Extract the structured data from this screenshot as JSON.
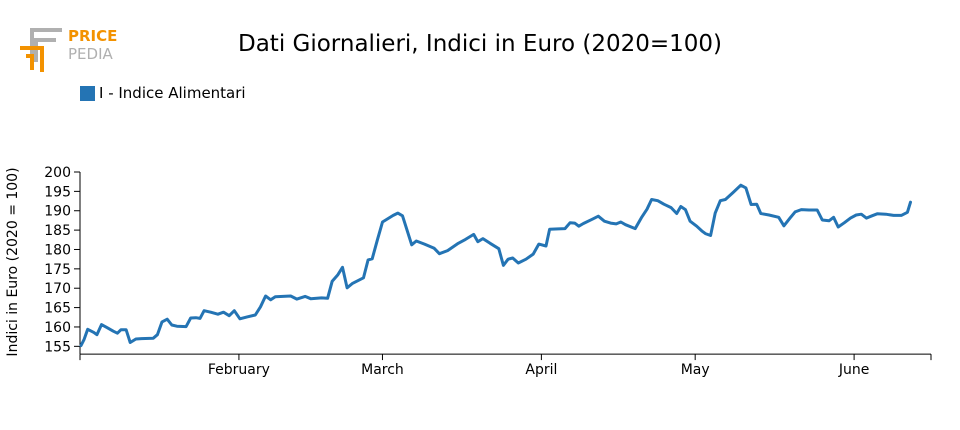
{
  "logo": {
    "line1": "PRICE",
    "line2": "PEDIA",
    "accent_color": "#f39200",
    "gray_color": "#b0b0b0"
  },
  "chart_data": {
    "type": "line",
    "title": "Dati Giornalieri, Indici in Euro (2020=100)",
    "ylabel": "Indici in Euro (2020 = 100)",
    "xlabel": "",
    "ylim": [
      153,
      200
    ],
    "yticks": [
      155,
      160,
      165,
      170,
      175,
      180,
      185,
      190,
      195,
      200
    ],
    "month_ticks": [
      {
        "label": "February",
        "day": 31
      },
      {
        "label": "March",
        "day": 59
      },
      {
        "label": "April",
        "day": 90
      },
      {
        "label": "May",
        "day": 120
      },
      {
        "label": "June",
        "day": 151
      }
    ],
    "x_range_days": [
      0,
      166
    ],
    "legend_position": "top-left",
    "grid": false,
    "series": [
      {
        "name": "I - Indice Alimentari",
        "color": "#2474b4",
        "points": [
          [
            0.2,
            155.2
          ],
          [
            0.8,
            156.8
          ],
          [
            1.5,
            159.4
          ],
          [
            2.7,
            158.6
          ],
          [
            3.3,
            158.0
          ],
          [
            4.2,
            160.6
          ],
          [
            5.3,
            159.8
          ],
          [
            6.5,
            158.9
          ],
          [
            7.3,
            158.4
          ],
          [
            8.0,
            159.3
          ],
          [
            9.0,
            159.3
          ],
          [
            9.8,
            156.0
          ],
          [
            10.9,
            156.9
          ],
          [
            12.0,
            157.0
          ],
          [
            14.3,
            157.1
          ],
          [
            15.1,
            158.0
          ],
          [
            16.0,
            161.3
          ],
          [
            17.0,
            162.0
          ],
          [
            17.9,
            160.5
          ],
          [
            18.9,
            160.2
          ],
          [
            20.7,
            160.1
          ],
          [
            21.6,
            162.3
          ],
          [
            22.6,
            162.4
          ],
          [
            23.4,
            162.2
          ],
          [
            24.2,
            164.2
          ],
          [
            25.5,
            163.8
          ],
          [
            26.9,
            163.3
          ],
          [
            28.0,
            163.8
          ],
          [
            29.1,
            162.9
          ],
          [
            30.1,
            164.2
          ],
          [
            31.2,
            162.1
          ],
          [
            32.6,
            162.6
          ],
          [
            34.2,
            163.1
          ],
          [
            35.2,
            165.2
          ],
          [
            36.2,
            168.0
          ],
          [
            37.2,
            167.0
          ],
          [
            38.1,
            167.8
          ],
          [
            39.6,
            167.9
          ],
          [
            41.1,
            168.0
          ],
          [
            42.3,
            167.2
          ],
          [
            43.9,
            167.9
          ],
          [
            45.0,
            167.3
          ],
          [
            47.1,
            167.5
          ],
          [
            48.3,
            167.4
          ],
          [
            49.2,
            171.8
          ],
          [
            50.3,
            173.5
          ],
          [
            51.2,
            175.4
          ],
          [
            52.1,
            170.1
          ],
          [
            53.1,
            171.2
          ],
          [
            55.3,
            172.7
          ],
          [
            56.2,
            177.3
          ],
          [
            57.0,
            177.6
          ],
          [
            58.0,
            182.4
          ],
          [
            59.0,
            187.1
          ],
          [
            61.1,
            188.8
          ],
          [
            62.0,
            189.4
          ],
          [
            62.9,
            188.7
          ],
          [
            64.7,
            181.2
          ],
          [
            65.6,
            182.2
          ],
          [
            67.2,
            181.4
          ],
          [
            69.1,
            180.3
          ],
          [
            70.1,
            178.9
          ],
          [
            71.7,
            179.7
          ],
          [
            73.8,
            181.6
          ],
          [
            75.2,
            182.6
          ],
          [
            76.8,
            183.9
          ],
          [
            77.6,
            182.0
          ],
          [
            78.6,
            182.8
          ],
          [
            80.0,
            181.6
          ],
          [
            81.7,
            180.2
          ],
          [
            82.6,
            175.9
          ],
          [
            83.5,
            177.5
          ],
          [
            84.4,
            177.8
          ],
          [
            85.5,
            176.5
          ],
          [
            87.0,
            177.5
          ],
          [
            88.4,
            178.8
          ],
          [
            89.5,
            181.4
          ],
          [
            90.9,
            180.9
          ],
          [
            91.6,
            185.2
          ],
          [
            93.3,
            185.3
          ],
          [
            94.6,
            185.4
          ],
          [
            95.6,
            186.9
          ],
          [
            96.5,
            186.8
          ],
          [
            97.3,
            186.0
          ],
          [
            98.2,
            186.7
          ],
          [
            99.9,
            187.8
          ],
          [
            101.1,
            188.6
          ],
          [
            102.3,
            187.3
          ],
          [
            103.5,
            186.8
          ],
          [
            104.6,
            186.6
          ],
          [
            105.5,
            187.1
          ],
          [
            106.4,
            186.4
          ],
          [
            108.3,
            185.4
          ],
          [
            109.5,
            188.2
          ],
          [
            110.6,
            190.4
          ],
          [
            111.5,
            192.9
          ],
          [
            112.7,
            192.6
          ],
          [
            113.9,
            191.7
          ],
          [
            115.3,
            190.8
          ],
          [
            116.4,
            189.3
          ],
          [
            117.2,
            191.1
          ],
          [
            118.1,
            190.3
          ],
          [
            119.0,
            187.3
          ],
          [
            120.3,
            186.0
          ],
          [
            121.3,
            184.8
          ],
          [
            122.0,
            184.1
          ],
          [
            123.0,
            183.6
          ],
          [
            123.9,
            189.4
          ],
          [
            124.9,
            192.6
          ],
          [
            125.9,
            192.9
          ],
          [
            127.4,
            194.7
          ],
          [
            128.9,
            196.6
          ],
          [
            129.9,
            195.9
          ],
          [
            130.9,
            191.6
          ],
          [
            132.0,
            191.7
          ],
          [
            132.8,
            189.3
          ],
          [
            134.4,
            188.9
          ],
          [
            136.3,
            188.3
          ],
          [
            137.3,
            186.1
          ],
          [
            138.5,
            188.1
          ],
          [
            139.5,
            189.7
          ],
          [
            140.7,
            190.3
          ],
          [
            142.2,
            190.2
          ],
          [
            143.8,
            190.2
          ],
          [
            144.8,
            187.6
          ],
          [
            146.1,
            187.4
          ],
          [
            147.0,
            188.3
          ],
          [
            147.9,
            185.8
          ],
          [
            149.1,
            186.9
          ],
          [
            150.3,
            188.1
          ],
          [
            151.4,
            188.9
          ],
          [
            152.4,
            189.1
          ],
          [
            153.4,
            188.1
          ],
          [
            154.5,
            188.7
          ],
          [
            155.5,
            189.2
          ],
          [
            157.2,
            189.1
          ],
          [
            158.7,
            188.8
          ],
          [
            160.2,
            188.8
          ],
          [
            161.4,
            189.6
          ],
          [
            162.0,
            192.2
          ]
        ]
      }
    ]
  }
}
